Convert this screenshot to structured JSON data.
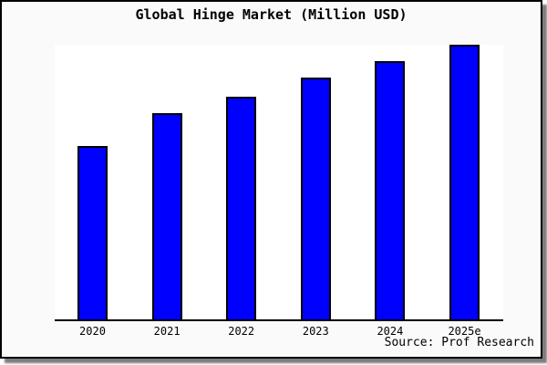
{
  "title": "Global Hinge Market (Million USD)",
  "source_label": "Source: Prof Research",
  "chart_data": {
    "type": "bar",
    "title": "Global Hinge Market (Million USD)",
    "categories": [
      "2020",
      "2021",
      "2022",
      "2023",
      "2024",
      "2025e"
    ],
    "values": [
      63,
      75,
      81,
      88,
      94,
      100
    ],
    "values_note": "relative index estimated from bar heights; no numeric y-axis shown; 2025e normalized to 100",
    "xlabel": "",
    "ylabel": "",
    "ylim": [
      0,
      100.3
    ],
    "grid": false,
    "legend": "none",
    "bar_color": "#0000ff",
    "bar_border_color": "#000000",
    "annotations": [
      "Source: Prof Research"
    ]
  },
  "colors": {
    "outer_background": "#fafafa",
    "plot_background": "#ffffff",
    "frame_border": "#000000",
    "shadow": "#7d7d7d",
    "text": "#000000",
    "accent": "#0000ff"
  }
}
